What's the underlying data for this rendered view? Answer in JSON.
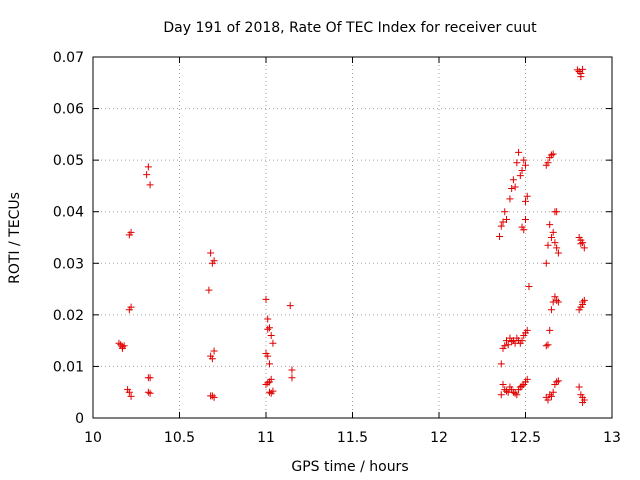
{
  "chart_data": {
    "type": "scatter",
    "title": "Day 191 of 2018, Rate Of TEC Index for receiver cuut",
    "xlabel": "GPS time / hours",
    "ylabel": "ROTI / TECUs",
    "xlim": [
      10,
      13
    ],
    "ylim": [
      0,
      0.07
    ],
    "grid": true,
    "marker": "+",
    "marker_color": "#e00000",
    "xticks": [
      {
        "value": 10,
        "label": "10"
      },
      {
        "value": 10.5,
        "label": "10.5"
      },
      {
        "value": 11,
        "label": "11"
      },
      {
        "value": 11.5,
        "label": "11.5"
      },
      {
        "value": 12,
        "label": "12"
      },
      {
        "value": 12.5,
        "label": "12.5"
      },
      {
        "value": 13,
        "label": "13"
      }
    ],
    "yticks": [
      {
        "value": 0,
        "label": "0"
      },
      {
        "value": 0.01,
        "label": "0.01"
      },
      {
        "value": 0.02,
        "label": "0.02"
      },
      {
        "value": 0.03,
        "label": "0.03"
      },
      {
        "value": 0.04,
        "label": "0.04"
      },
      {
        "value": 0.05,
        "label": "0.05"
      },
      {
        "value": 0.06,
        "label": "0.06"
      },
      {
        "value": 0.07,
        "label": "0.07"
      }
    ],
    "series": [
      {
        "name": "ROTI",
        "points": [
          [
            10.15,
            0.0145
          ],
          [
            10.16,
            0.0142
          ],
          [
            10.17,
            0.0138
          ],
          [
            10.18,
            0.014
          ],
          [
            10.17,
            0.0135
          ],
          [
            10.2,
            0.0055
          ],
          [
            10.21,
            0.005
          ],
          [
            10.22,
            0.0042
          ],
          [
            10.21,
            0.0355
          ],
          [
            10.22,
            0.036
          ],
          [
            10.21,
            0.021
          ],
          [
            10.22,
            0.0215
          ],
          [
            10.31,
            0.0472
          ],
          [
            10.32,
            0.0487
          ],
          [
            10.33,
            0.0452
          ],
          [
            10.32,
            0.0078
          ],
          [
            10.33,
            0.0078
          ],
          [
            10.32,
            0.005
          ],
          [
            10.33,
            0.0048
          ],
          [
            10.67,
            0.0248
          ],
          [
            10.68,
            0.032
          ],
          [
            10.69,
            0.03
          ],
          [
            10.7,
            0.0305
          ],
          [
            10.68,
            0.012
          ],
          [
            10.69,
            0.0115
          ],
          [
            10.7,
            0.013
          ],
          [
            10.68,
            0.0043
          ],
          [
            10.69,
            0.0043
          ],
          [
            10.7,
            0.004
          ],
          [
            11.0,
            0.023
          ],
          [
            11.01,
            0.0192
          ],
          [
            11.02,
            0.0175
          ],
          [
            11.01,
            0.0172
          ],
          [
            11.03,
            0.016
          ],
          [
            11.04,
            0.0145
          ],
          [
            11.0,
            0.0125
          ],
          [
            11.01,
            0.012
          ],
          [
            11.02,
            0.0105
          ],
          [
            11.0,
            0.0065
          ],
          [
            11.01,
            0.0068
          ],
          [
            11.02,
            0.007
          ],
          [
            11.03,
            0.0075
          ],
          [
            11.02,
            0.005
          ],
          [
            11.03,
            0.0048
          ],
          [
            11.04,
            0.0052
          ],
          [
            11.14,
            0.0218
          ],
          [
            11.15,
            0.0093
          ],
          [
            11.15,
            0.0078
          ],
          [
            12.35,
            0.0352
          ],
          [
            12.36,
            0.0372
          ],
          [
            12.37,
            0.038
          ],
          [
            12.38,
            0.04
          ],
          [
            12.39,
            0.0385
          ],
          [
            12.36,
            0.0105
          ],
          [
            12.37,
            0.0135
          ],
          [
            12.38,
            0.014
          ],
          [
            12.39,
            0.015
          ],
          [
            12.4,
            0.0142
          ],
          [
            12.36,
            0.0045
          ],
          [
            12.37,
            0.0065
          ],
          [
            12.38,
            0.0055
          ],
          [
            12.39,
            0.0052
          ],
          [
            12.4,
            0.005
          ],
          [
            12.41,
            0.0425
          ],
          [
            12.42,
            0.0445
          ],
          [
            12.43,
            0.0462
          ],
          [
            12.44,
            0.0448
          ],
          [
            12.45,
            0.0495
          ],
          [
            12.46,
            0.0515
          ],
          [
            12.47,
            0.047
          ],
          [
            12.48,
            0.048
          ],
          [
            12.49,
            0.05
          ],
          [
            12.5,
            0.049
          ],
          [
            12.48,
            0.037
          ],
          [
            12.49,
            0.0365
          ],
          [
            12.5,
            0.0385
          ],
          [
            12.51,
            0.043
          ],
          [
            12.5,
            0.042
          ],
          [
            12.52,
            0.0255
          ],
          [
            12.41,
            0.0155
          ],
          [
            12.42,
            0.0148
          ],
          [
            12.43,
            0.015
          ],
          [
            12.44,
            0.0145
          ],
          [
            12.45,
            0.0155
          ],
          [
            12.46,
            0.015
          ],
          [
            12.47,
            0.0145
          ],
          [
            12.48,
            0.015
          ],
          [
            12.49,
            0.016
          ],
          [
            12.5,
            0.0165
          ],
          [
            12.51,
            0.017
          ],
          [
            12.41,
            0.006
          ],
          [
            12.42,
            0.0055
          ],
          [
            12.43,
            0.005
          ],
          [
            12.44,
            0.0048
          ],
          [
            12.45,
            0.0045
          ],
          [
            12.46,
            0.0055
          ],
          [
            12.47,
            0.006
          ],
          [
            12.48,
            0.0062
          ],
          [
            12.49,
            0.0065
          ],
          [
            12.5,
            0.007
          ],
          [
            12.51,
            0.0075
          ],
          [
            12.62,
            0.049
          ],
          [
            12.63,
            0.0495
          ],
          [
            12.64,
            0.0505
          ],
          [
            12.65,
            0.051
          ],
          [
            12.66,
            0.0512
          ],
          [
            12.62,
            0.03
          ],
          [
            12.63,
            0.0335
          ],
          [
            12.64,
            0.0375
          ],
          [
            12.65,
            0.035
          ],
          [
            12.66,
            0.036
          ],
          [
            12.67,
            0.04
          ],
          [
            12.68,
            0.04
          ],
          [
            12.68,
            0.033
          ],
          [
            12.69,
            0.032
          ],
          [
            12.67,
            0.034
          ],
          [
            12.62,
            0.014
          ],
          [
            12.63,
            0.0142
          ],
          [
            12.64,
            0.017
          ],
          [
            12.65,
            0.021
          ],
          [
            12.66,
            0.0225
          ],
          [
            12.67,
            0.0235
          ],
          [
            12.68,
            0.0228
          ],
          [
            12.69,
            0.0225
          ],
          [
            12.62,
            0.004
          ],
          [
            12.63,
            0.0035
          ],
          [
            12.64,
            0.0045
          ],
          [
            12.65,
            0.0042
          ],
          [
            12.66,
            0.005
          ],
          [
            12.67,
            0.0065
          ],
          [
            12.68,
            0.007
          ],
          [
            12.69,
            0.0072
          ],
          [
            12.8,
            0.0675
          ],
          [
            12.81,
            0.0672
          ],
          [
            12.82,
            0.0668
          ],
          [
            12.83,
            0.0676
          ],
          [
            12.82,
            0.0662
          ],
          [
            12.81,
            0.035
          ],
          [
            12.82,
            0.0345
          ],
          [
            12.83,
            0.034
          ],
          [
            12.84,
            0.033
          ],
          [
            12.82,
            0.0338
          ],
          [
            12.81,
            0.021
          ],
          [
            12.82,
            0.0215
          ],
          [
            12.83,
            0.0225
          ],
          [
            12.84,
            0.0228
          ],
          [
            12.83,
            0.022
          ],
          [
            12.81,
            0.006
          ],
          [
            12.82,
            0.0045
          ],
          [
            12.83,
            0.004
          ],
          [
            12.84,
            0.0035
          ],
          [
            12.83,
            0.003
          ]
        ]
      }
    ]
  }
}
